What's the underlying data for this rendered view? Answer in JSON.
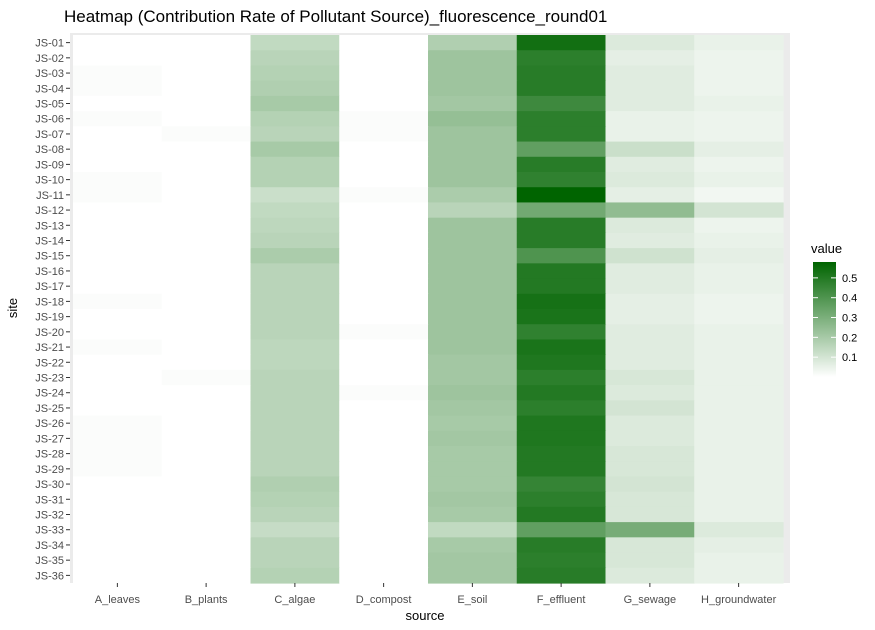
{
  "chart_data": {
    "type": "heatmap",
    "title": "Heatmap (Contribution Rate of Pollutant Source)_fluorescence_round01",
    "xlabel": "source",
    "ylabel": "site",
    "x": [
      "A_leaves",
      "B_plants",
      "C_algae",
      "D_compost",
      "E_soil",
      "F_effluent",
      "G_sewage",
      "H_groundwater"
    ],
    "y": [
      "JS-01",
      "JS-02",
      "JS-03",
      "JS-04",
      "JS-05",
      "JS-06",
      "JS-07",
      "JS-08",
      "JS-09",
      "JS-10",
      "JS-11",
      "JS-12",
      "JS-13",
      "JS-14",
      "JS-15",
      "JS-16",
      "JS-17",
      "JS-18",
      "JS-19",
      "JS-20",
      "JS-21",
      "JS-22",
      "JS-23",
      "JS-24",
      "JS-25",
      "JS-26",
      "JS-27",
      "JS-28",
      "JS-29",
      "JS-30",
      "JS-31",
      "JS-32",
      "JS-33",
      "JS-34",
      "JS-35",
      "JS-36"
    ],
    "values": [
      [
        0.0,
        0.0,
        0.14,
        0.0,
        0.18,
        0.54,
        0.08,
        0.05
      ],
      [
        0.0,
        0.0,
        0.16,
        0.0,
        0.22,
        0.48,
        0.06,
        0.04
      ],
      [
        0.01,
        0.0,
        0.17,
        0.0,
        0.22,
        0.49,
        0.07,
        0.04
      ],
      [
        0.01,
        0.0,
        0.18,
        0.0,
        0.22,
        0.49,
        0.07,
        0.04
      ],
      [
        0.0,
        0.0,
        0.2,
        0.0,
        0.21,
        0.44,
        0.07,
        0.05
      ],
      [
        0.01,
        0.0,
        0.17,
        0.01,
        0.24,
        0.48,
        0.05,
        0.04
      ],
      [
        0.0,
        0.01,
        0.16,
        0.01,
        0.22,
        0.48,
        0.05,
        0.04
      ],
      [
        0.0,
        0.0,
        0.2,
        0.0,
        0.22,
        0.36,
        0.12,
        0.06
      ],
      [
        0.0,
        0.0,
        0.17,
        0.0,
        0.22,
        0.49,
        0.07,
        0.04
      ],
      [
        0.01,
        0.0,
        0.17,
        0.0,
        0.22,
        0.47,
        0.08,
        0.05
      ],
      [
        0.01,
        0.0,
        0.12,
        0.01,
        0.19,
        0.58,
        0.06,
        0.03
      ],
      [
        0.0,
        0.0,
        0.14,
        0.0,
        0.16,
        0.32,
        0.25,
        0.1
      ],
      [
        0.0,
        0.0,
        0.15,
        0.0,
        0.22,
        0.49,
        0.08,
        0.04
      ],
      [
        0.0,
        0.0,
        0.16,
        0.0,
        0.22,
        0.49,
        0.07,
        0.05
      ],
      [
        0.0,
        0.0,
        0.19,
        0.0,
        0.22,
        0.4,
        0.11,
        0.06
      ],
      [
        0.0,
        0.0,
        0.16,
        0.0,
        0.22,
        0.5,
        0.07,
        0.05
      ],
      [
        0.0,
        0.0,
        0.16,
        0.0,
        0.22,
        0.5,
        0.07,
        0.05
      ],
      [
        0.01,
        0.0,
        0.16,
        0.0,
        0.22,
        0.53,
        0.06,
        0.04
      ],
      [
        0.0,
        0.0,
        0.16,
        0.0,
        0.22,
        0.52,
        0.06,
        0.04
      ],
      [
        0.0,
        0.0,
        0.16,
        0.01,
        0.22,
        0.47,
        0.07,
        0.05
      ],
      [
        0.01,
        0.0,
        0.15,
        0.0,
        0.22,
        0.52,
        0.07,
        0.05
      ],
      [
        0.0,
        0.0,
        0.15,
        0.0,
        0.21,
        0.51,
        0.07,
        0.05
      ],
      [
        0.0,
        0.01,
        0.16,
        0.0,
        0.21,
        0.48,
        0.09,
        0.05
      ],
      [
        0.0,
        0.0,
        0.16,
        0.01,
        0.22,
        0.5,
        0.08,
        0.05
      ],
      [
        0.0,
        0.0,
        0.16,
        0.0,
        0.21,
        0.48,
        0.1,
        0.05
      ],
      [
        0.01,
        0.0,
        0.16,
        0.0,
        0.2,
        0.51,
        0.08,
        0.05
      ],
      [
        0.01,
        0.0,
        0.16,
        0.0,
        0.21,
        0.51,
        0.08,
        0.05
      ],
      [
        0.01,
        0.0,
        0.16,
        0.0,
        0.2,
        0.5,
        0.09,
        0.05
      ],
      [
        0.01,
        0.0,
        0.16,
        0.0,
        0.2,
        0.5,
        0.09,
        0.05
      ],
      [
        0.0,
        0.0,
        0.18,
        0.0,
        0.2,
        0.46,
        0.1,
        0.05
      ],
      [
        0.0,
        0.0,
        0.17,
        0.0,
        0.21,
        0.48,
        0.09,
        0.05
      ],
      [
        0.0,
        0.0,
        0.16,
        0.0,
        0.2,
        0.5,
        0.09,
        0.05
      ],
      [
        0.0,
        0.0,
        0.13,
        0.0,
        0.14,
        0.36,
        0.31,
        0.08
      ],
      [
        0.0,
        0.0,
        0.16,
        0.0,
        0.2,
        0.49,
        0.09,
        0.06
      ],
      [
        0.0,
        0.0,
        0.16,
        0.0,
        0.21,
        0.48,
        0.09,
        0.05
      ],
      [
        0.0,
        0.0,
        0.17,
        0.0,
        0.21,
        0.49,
        0.08,
        0.05
      ]
    ],
    "color_scale": {
      "low": "#ffffff",
      "high": "#006400",
      "min": 0,
      "max": 0.58
    },
    "legend": {
      "title": "value",
      "ticks": [
        0.1,
        0.2,
        0.3,
        0.4,
        0.5
      ],
      "placement": "right"
    },
    "panel_background": "#ebebeb"
  }
}
